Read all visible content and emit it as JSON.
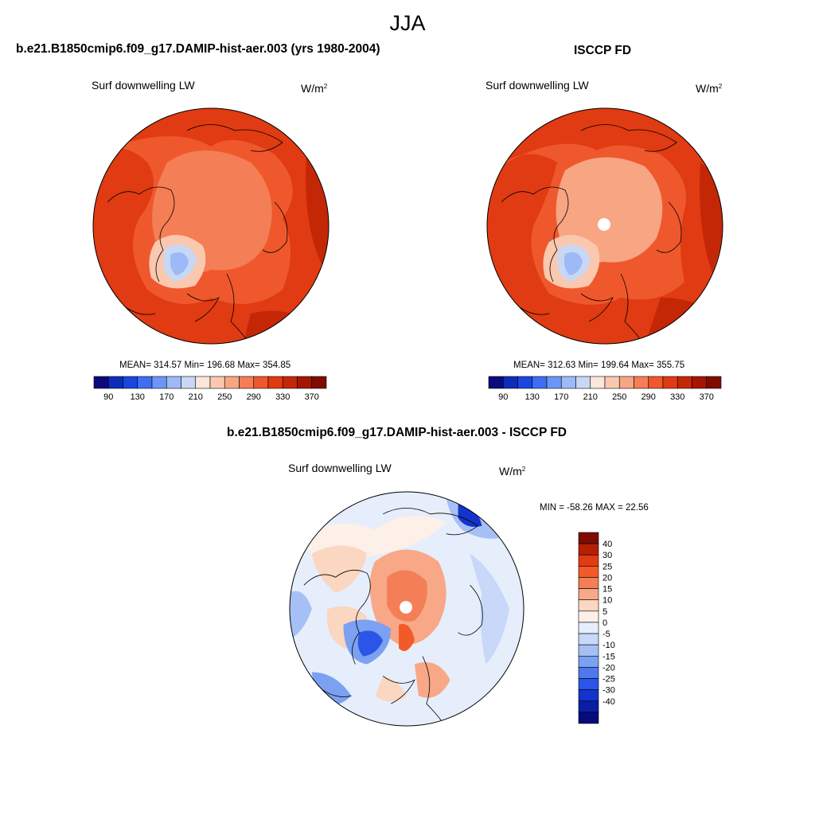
{
  "season": "JJA",
  "panels": [
    {
      "title": "b.e21.B1850cmip6.f09_g17.DAMIP-hist-aer.003 (yrs 1980-2004)",
      "variable": "Surf downwelling LW",
      "units_base": "W/m",
      "units_exp": "2",
      "stats": "MEAN= 314.57  Min= 196.68  Max= 354.85",
      "mean": 314.57,
      "min": 196.68,
      "max": 354.85
    },
    {
      "title": "ISCCP FD",
      "variable": "Surf downwelling LW",
      "units_base": "W/m",
      "units_exp": "2",
      "stats": "MEAN= 312.63  Min= 199.64  Max= 355.75",
      "mean": 312.63,
      "min": 199.64,
      "max": 355.75
    }
  ],
  "diff_panel": {
    "title": "b.e21.B1850cmip6.f09_g17.DAMIP-hist-aer.003 - ISCCP FD",
    "variable": "Surf downwelling LW",
    "units_base": "W/m",
    "units_exp": "2",
    "stats": "MIN = -58.26 MAX =  22.56",
    "min": -58.26,
    "max": 22.56
  },
  "field_colorbar": {
    "colors": [
      "#0b0a7a",
      "#0d2db8",
      "#1a47e0",
      "#3f6ef2",
      "#6c96f6",
      "#9db9f7",
      "#c8d8f4",
      "#fbe6da",
      "#f9c8ae",
      "#f7a583",
      "#f47e55",
      "#ef582c",
      "#e03b12",
      "#c42706",
      "#a51503",
      "#800b01"
    ],
    "tick_labels": [
      "90",
      "130",
      "170",
      "210",
      "250",
      "290",
      "330",
      "370"
    ]
  },
  "diff_colorbar": {
    "colors": [
      "#7d0b02",
      "#b51f03",
      "#e03b12",
      "#f25a28",
      "#f47e55",
      "#f8a886",
      "#fbd6c0",
      "#fdf0e8",
      "#e6eefc",
      "#c7d8f9",
      "#a6c0f6",
      "#7ca0f2",
      "#4f78ee",
      "#2a55e8",
      "#1433cc",
      "#0a1da3",
      "#060c7a"
    ],
    "tick_labels": [
      "40",
      "30",
      "25",
      "20",
      "15",
      "10",
      "5",
      "0",
      "-5",
      "-10",
      "-15",
      "-20",
      "-25",
      "-30",
      "-40"
    ]
  }
}
